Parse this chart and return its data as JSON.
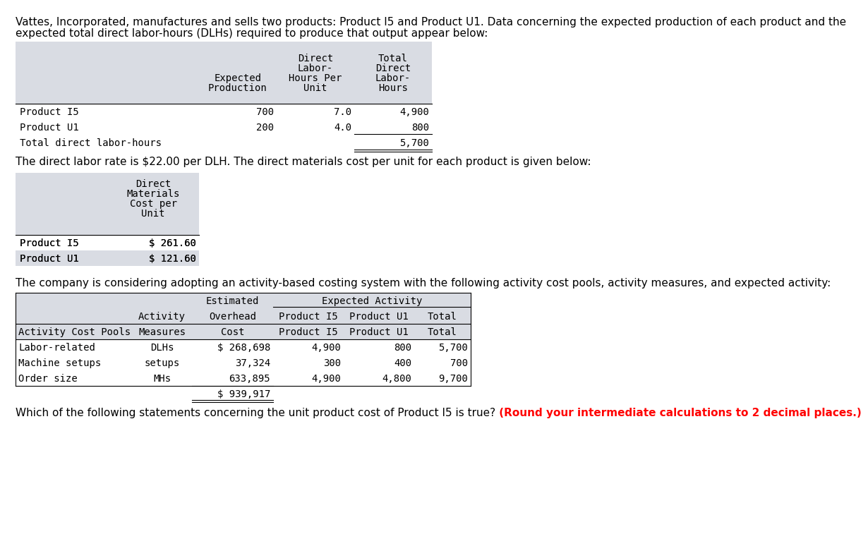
{
  "intro_line1": "Vattes, Incorporated, manufactures and sells two products: Product I5 and Product U1. Data concerning the expected production of each product and the",
  "intro_line2": "expected total direct labor-hours (DLHs) required to produce that output appear below:",
  "middle_text": "The direct labor rate is $22.00 per DLH. The direct materials cost per unit for each product is given below:",
  "abc_text": "The company is considering adopting an activity-based costing system with the following activity cost pools, activity measures, and expected activity:",
  "footer_normal": "Which of the following statements concerning the unit product cost of Product I5 is true?",
  "footer_bold": " (Round your intermediate calculations to 2 decimal places.)",
  "bg_color": "#ffffff",
  "hdr_bg": "#d9dce3",
  "t1_rows": [
    [
      "Product I5",
      "700",
      "7.0",
      "4,900"
    ],
    [
      "Product U1",
      "200",
      "4.0",
      "800"
    ],
    [
      "Total direct labor-hours",
      "",
      "",
      "5,700"
    ]
  ],
  "t2_rows": [
    [
      "Product I5",
      "$ 261.60"
    ],
    [
      "Product U1",
      "$ 121.60"
    ]
  ],
  "t3_rows": [
    [
      "Labor-related",
      "DLHs",
      "$ 268,698",
      "4,900",
      "800",
      "5,700"
    ],
    [
      "Machine setups",
      "setups",
      "37,324",
      "300",
      "400",
      "700"
    ],
    [
      "Order size",
      "MHs",
      "633,895",
      "4,900",
      "4,800",
      "9,700"
    ],
    [
      "",
      "",
      "$ 939,917",
      "",
      "",
      ""
    ]
  ]
}
